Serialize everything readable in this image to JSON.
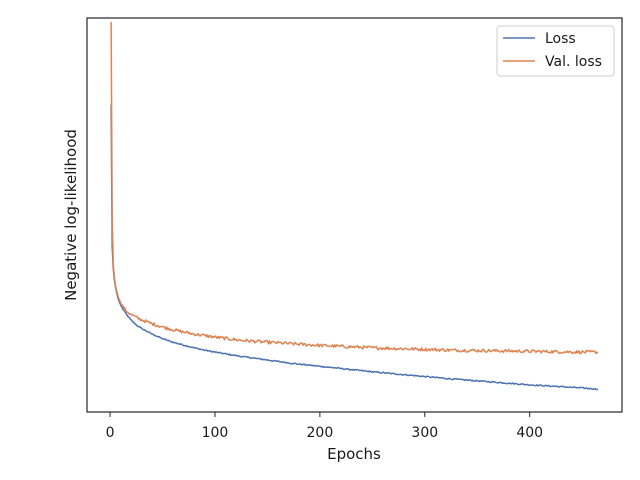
{
  "chart_data": {
    "type": "line",
    "xlabel": "Epochs",
    "ylabel": "Negative log-likelihood",
    "xlim": [
      -22,
      488
    ],
    "ylim": [
      0,
      1
    ],
    "xticks": [
      0,
      100,
      200,
      300,
      400
    ],
    "yticks_labeled": false,
    "grid": false,
    "legend_position": "top-right",
    "series": [
      {
        "name": "Loss",
        "color": "#4c72b0",
        "x": [
          1,
          2,
          3,
          4,
          5,
          6,
          8,
          10,
          12,
          15,
          20,
          25,
          30,
          40,
          50,
          60,
          70,
          80,
          90,
          100,
          125,
          150,
          175,
          200,
          225,
          250,
          275,
          300,
          325,
          350,
          375,
          400,
          425,
          450,
          465
        ],
        "y": [
          0.78,
          0.42,
          0.365,
          0.338,
          0.32,
          0.306,
          0.285,
          0.272,
          0.262,
          0.25,
          0.233,
          0.221,
          0.212,
          0.198,
          0.186,
          0.177,
          0.17,
          0.163,
          0.157,
          0.152,
          0.141,
          0.132,
          0.123,
          0.116,
          0.109,
          0.102,
          0.096,
          0.09,
          0.084,
          0.079,
          0.074,
          0.069,
          0.065,
          0.061,
          0.058
        ]
      },
      {
        "name": "Val. loss",
        "color": "#dd8452",
        "x": [
          1,
          2,
          3,
          4,
          5,
          6,
          8,
          10,
          12,
          15,
          20,
          25,
          30,
          40,
          50,
          60,
          70,
          80,
          90,
          100,
          125,
          150,
          175,
          200,
          225,
          250,
          275,
          300,
          325,
          350,
          375,
          400,
          425,
          450,
          465
        ],
        "y": [
          0.99,
          0.5,
          0.375,
          0.345,
          0.325,
          0.31,
          0.29,
          0.278,
          0.268,
          0.258,
          0.247,
          0.24,
          0.234,
          0.224,
          0.216,
          0.209,
          0.203,
          0.198,
          0.194,
          0.19,
          0.182,
          0.177,
          0.173,
          0.169,
          0.166,
          0.163,
          0.161,
          0.159,
          0.157,
          0.156,
          0.155,
          0.154,
          0.153,
          0.152,
          0.152
        ]
      }
    ]
  }
}
